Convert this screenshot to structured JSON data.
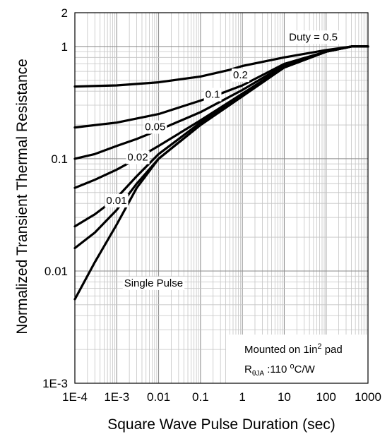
{
  "chart_data": {
    "type": "line",
    "xscale": "log",
    "yscale": "log",
    "xlim": [
      0.0001,
      1000
    ],
    "ylim": [
      0.001,
      2
    ],
    "grid": true,
    "xlabel": "Square Wave Pulse Duration (sec)",
    "ylabel": "Normalized Transient Thermal Resistance",
    "x_ticks": [
      {
        "value": 0.0001,
        "label": "1E-4"
      },
      {
        "value": 0.001,
        "label": "1E-3"
      },
      {
        "value": 0.01,
        "label": "0.01"
      },
      {
        "value": 0.1,
        "label": "0.1"
      },
      {
        "value": 1,
        "label": "1"
      },
      {
        "value": 10,
        "label": "10"
      },
      {
        "value": 100,
        "label": "100"
      },
      {
        "value": 1000,
        "label": "1000"
      }
    ],
    "y_ticks": [
      {
        "value": 2,
        "label": "2"
      },
      {
        "value": 1,
        "label": "1"
      },
      {
        "value": 0.1,
        "label": "0.1"
      },
      {
        "value": 0.01,
        "label": "0.01"
      },
      {
        "value": 0.001,
        "label": "1E-3"
      }
    ],
    "series": [
      {
        "name": "Duty = 0.5",
        "x": [
          0.0001,
          0.001,
          0.01,
          0.1,
          0.5,
          1,
          10,
          100,
          400,
          1000
        ],
        "y": [
          0.44,
          0.45,
          0.48,
          0.54,
          0.62,
          0.67,
          0.8,
          0.93,
          1.0,
          1.0
        ]
      },
      {
        "name": "0.2",
        "x": [
          0.0001,
          0.001,
          0.01,
          0.1,
          0.3,
          1,
          10,
          100,
          400,
          1000
        ],
        "y": [
          0.19,
          0.21,
          0.25,
          0.33,
          0.38,
          0.45,
          0.7,
          0.9,
          1.0,
          1.0
        ]
      },
      {
        "name": "0.1",
        "x": [
          0.0001,
          0.0003,
          0.001,
          0.003,
          0.01,
          0.1,
          1,
          10,
          100,
          400,
          1000
        ],
        "y": [
          0.1,
          0.11,
          0.13,
          0.15,
          0.18,
          0.26,
          0.41,
          0.68,
          0.9,
          1.0,
          1.0
        ]
      },
      {
        "name": "0.05",
        "x": [
          0.0001,
          0.0003,
          0.001,
          0.003,
          0.01,
          0.1,
          1,
          10,
          100,
          400,
          1000
        ],
        "y": [
          0.055,
          0.065,
          0.08,
          0.1,
          0.13,
          0.22,
          0.38,
          0.66,
          0.9,
          1.0,
          1.0
        ]
      },
      {
        "name": "0.02",
        "x": [
          0.0001,
          0.0003,
          0.001,
          0.003,
          0.01,
          0.1,
          1,
          10,
          100,
          400,
          1000
        ],
        "y": [
          0.025,
          0.032,
          0.045,
          0.07,
          0.11,
          0.21,
          0.37,
          0.65,
          0.9,
          1.0,
          1.0
        ]
      },
      {
        "name": "0.01",
        "x": [
          0.0001,
          0.0003,
          0.001,
          0.003,
          0.01,
          0.1,
          1,
          10,
          100,
          400,
          1000
        ],
        "y": [
          0.016,
          0.022,
          0.035,
          0.06,
          0.1,
          0.2,
          0.36,
          0.65,
          0.9,
          1.0,
          1.0
        ]
      },
      {
        "name": "Single Pulse",
        "x": [
          0.0001,
          0.0003,
          0.001,
          0.003,
          0.01,
          0.1,
          1,
          10,
          100,
          400,
          1000
        ],
        "y": [
          0.0056,
          0.012,
          0.026,
          0.055,
          0.1,
          0.2,
          0.36,
          0.65,
          0.9,
          1.0,
          1.0
        ]
      }
    ],
    "series_labels": [
      {
        "text": "Duty = 0.5",
        "x": 13,
        "y": 1.2,
        "anchor": "start",
        "boxed": true
      },
      {
        "text": "0.2",
        "x": 0.6,
        "y": 0.55,
        "anchor": "start",
        "boxed": true
      },
      {
        "text": "0.1",
        "x": 0.13,
        "y": 0.37,
        "anchor": "start",
        "boxed": true
      },
      {
        "text": "0.05",
        "x": 0.0047,
        "y": 0.19,
        "anchor": "start",
        "boxed": true
      },
      {
        "text": "0.02",
        "x": 0.0018,
        "y": 0.102,
        "anchor": "start",
        "boxed": true
      },
      {
        "text": "0.01",
        "x": 0.00056,
        "y": 0.042,
        "anchor": "start",
        "boxed": true
      },
      {
        "text": "Single Pulse",
        "x": 0.0015,
        "y": 0.0077,
        "anchor": "start",
        "boxed": true
      }
    ],
    "note": {
      "line1_prefix": "Mounted on 1in",
      "line1_sup": "2",
      "line1_suffix": " pad",
      "line2_main": "R",
      "line2_sub": "θJA",
      "line2_value": " :110 ",
      "line2_sup": "o",
      "line2_unit": "C/W"
    }
  }
}
